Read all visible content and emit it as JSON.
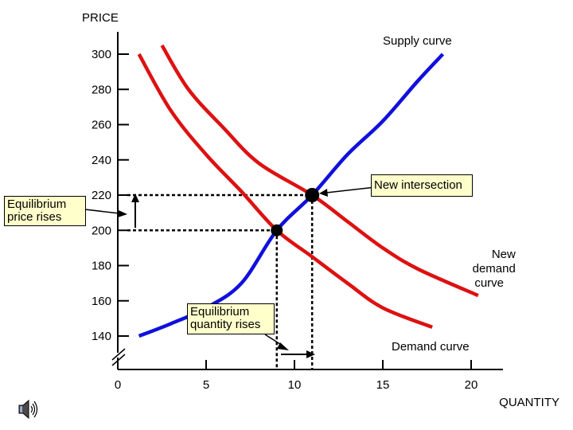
{
  "chart_data": {
    "type": "line",
    "ylabel": "PRICE",
    "xlabel": "QUANTITY",
    "x_ticks": [
      0,
      5,
      10,
      15,
      20
    ],
    "y_ticks": [
      140,
      160,
      180,
      200,
      220,
      240,
      260,
      280,
      300
    ],
    "xlim": [
      0,
      22
    ],
    "ylim": [
      130,
      310
    ],
    "y_axis_break": true,
    "grid": false,
    "series": [
      {
        "name": "Supply curve",
        "color": "#1010dd",
        "x": [
          1.2,
          3,
          5,
          7,
          9,
          11,
          13,
          15,
          17,
          18.4
        ],
        "y": [
          140,
          147,
          156,
          170,
          200,
          220,
          243,
          262,
          285,
          300
        ]
      },
      {
        "name": "Demand curve",
        "color": "#dd1111",
        "x": [
          1.2,
          3,
          5,
          7,
          9,
          11,
          13,
          15,
          17.8
        ],
        "y": [
          300,
          268,
          243,
          222,
          200,
          185,
          170,
          156,
          145
        ]
      },
      {
        "name": "New demand curve",
        "color": "#dd1111",
        "x": [
          2.5,
          4,
          6,
          8,
          11,
          13,
          15,
          17,
          20.4
        ],
        "y": [
          305,
          280,
          258,
          238,
          220,
          205,
          190,
          178,
          163
        ]
      }
    ],
    "points": [
      {
        "x": 9,
        "y": 200
      },
      {
        "x": 11,
        "y": 220
      }
    ],
    "annotations": {
      "supply_label": "Supply curve",
      "demand_label": "Demand curve",
      "new_demand_label": [
        "New",
        "demand",
        "curve"
      ],
      "new_intersection": "New intersection",
      "price_rises": [
        "Equilibrium",
        "price rises"
      ],
      "quantity_rises": [
        "Equilibrium",
        "quantity rises"
      ]
    }
  },
  "speaker_icon": "speaker-icon"
}
